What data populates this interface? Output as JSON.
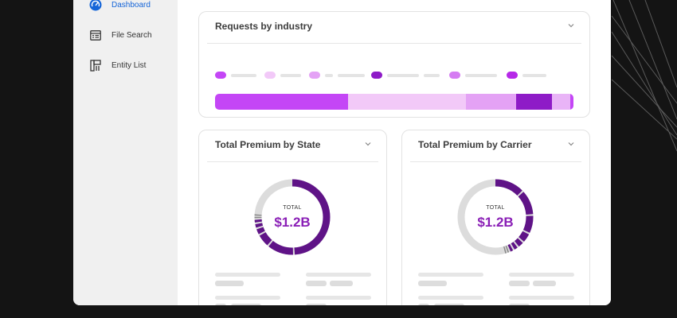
{
  "sidebar": {
    "items": [
      {
        "label": "Dashboard",
        "icon": "dashboard-gauge-icon",
        "active": true
      },
      {
        "label": "File Search",
        "icon": "file-search-icon",
        "active": false
      },
      {
        "label": "Entity List",
        "icon": "entity-list-icon",
        "active": false
      }
    ]
  },
  "industry_card": {
    "title": "Requests by industry",
    "segments": [
      {
        "share": 0.37,
        "color": "#c446f6"
      },
      {
        "share": 0.33,
        "color": "#f2c9f8"
      },
      {
        "share": 0.14,
        "color": "#e4a2f5"
      },
      {
        "share": 0.1,
        "color": "#8e1bc7"
      },
      {
        "share": 0.05,
        "color": "#e9b4f7"
      },
      {
        "share": 0.01,
        "color": "#c446f6"
      }
    ]
  },
  "state_card": {
    "title": "Total Premium by State",
    "total_label": "TOTAL",
    "total_value": "$1.2B"
  },
  "carrier_card": {
    "title": "Total Premium by Carrier",
    "total_label": "TOTAL",
    "total_value": "$1.2B"
  },
  "colors": {
    "accent": "#8a1fb6",
    "donut_dark": "#5f1387",
    "donut_track": "#dcdcdc",
    "active_nav": "#1565d8"
  }
}
